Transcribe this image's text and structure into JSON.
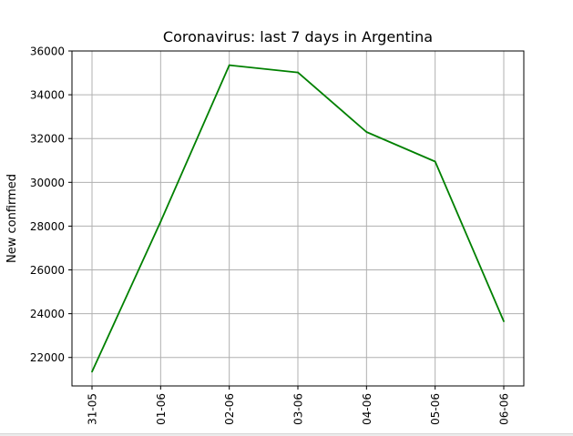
{
  "chart_data": {
    "type": "line",
    "title": "Coronavirus: last 7 days in Argentina",
    "xlabel": "",
    "ylabel": "New confirmed",
    "categories": [
      "31-05",
      "01-06",
      "02-06",
      "03-06",
      "04-06",
      "05-06",
      "06-06"
    ],
    "series": [
      {
        "values": [
          21350,
          28200,
          35350,
          35020,
          32300,
          30950,
          23650
        ],
        "color": "#008000"
      }
    ],
    "yticks": [
      22000,
      24000,
      26000,
      28000,
      30000,
      32000,
      34000,
      36000
    ],
    "ylim": [
      20700,
      36000
    ],
    "grid": true,
    "legend": "none"
  }
}
